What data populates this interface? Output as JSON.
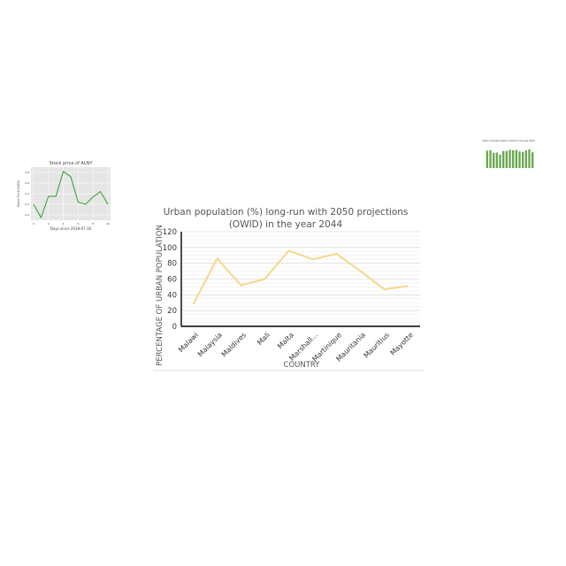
{
  "chart_data": [
    {
      "type": "line",
      "title": "Urban population (%) long-run with 2050 projections (OWID) in the year 2044",
      "title_lines": [
        "Urban population (%) long-run with 2050 projections",
        "(OWID) in the year 2044"
      ],
      "xlabel": "COUNTRY",
      "ylabel": "PERCENTAGE OF URBAN POPULATION",
      "categories": [
        "Malawi",
        "Malaysia",
        "Maldives",
        "Mali",
        "Malta",
        "Marshall...",
        "Martinique",
        "Mauritania",
        "Mauritius",
        "Mayotte"
      ],
      "values": [
        28,
        86,
        52,
        60,
        96,
        85,
        92,
        70,
        47,
        51
      ],
      "ylim": [
        0,
        120
      ],
      "yticks": [
        0,
        20,
        40,
        60,
        80,
        100,
        120
      ],
      "grid": true,
      "colors": {
        "line": "#f5d78c"
      }
    },
    {
      "type": "line",
      "title": "Stock price of ALNY",
      "xlabel": "Days since 2018-07-16",
      "ylabel": "Stock Price (USD)",
      "x": [
        0,
        1,
        2,
        3,
        4,
        5,
        6,
        7,
        8,
        9,
        10
      ],
      "values": [
        0.2,
        -0.05,
        0.35,
        0.35,
        0.82,
        0.72,
        0.24,
        0.2,
        0.34,
        0.44,
        0.2
      ],
      "xticks": [
        0,
        2,
        4,
        6,
        8,
        10
      ],
      "yticks": [
        0.0,
        0.2,
        0.4,
        0.6,
        0.8
      ],
      "ylim": [
        -0.1,
        0.9
      ],
      "grid": true,
      "colors": {
        "line": "#2ca02c",
        "background": "#e5e5e5"
      }
    },
    {
      "type": "bar",
      "title": "Share of people deaths caused for the year 2049",
      "values": [
        82,
        84,
        72,
        73,
        63,
        80,
        81,
        86,
        84,
        85,
        78,
        76,
        83,
        88,
        74
      ],
      "ylim": [
        0,
        100
      ],
      "colors": {
        "bar": "#6aa84f"
      }
    }
  ]
}
